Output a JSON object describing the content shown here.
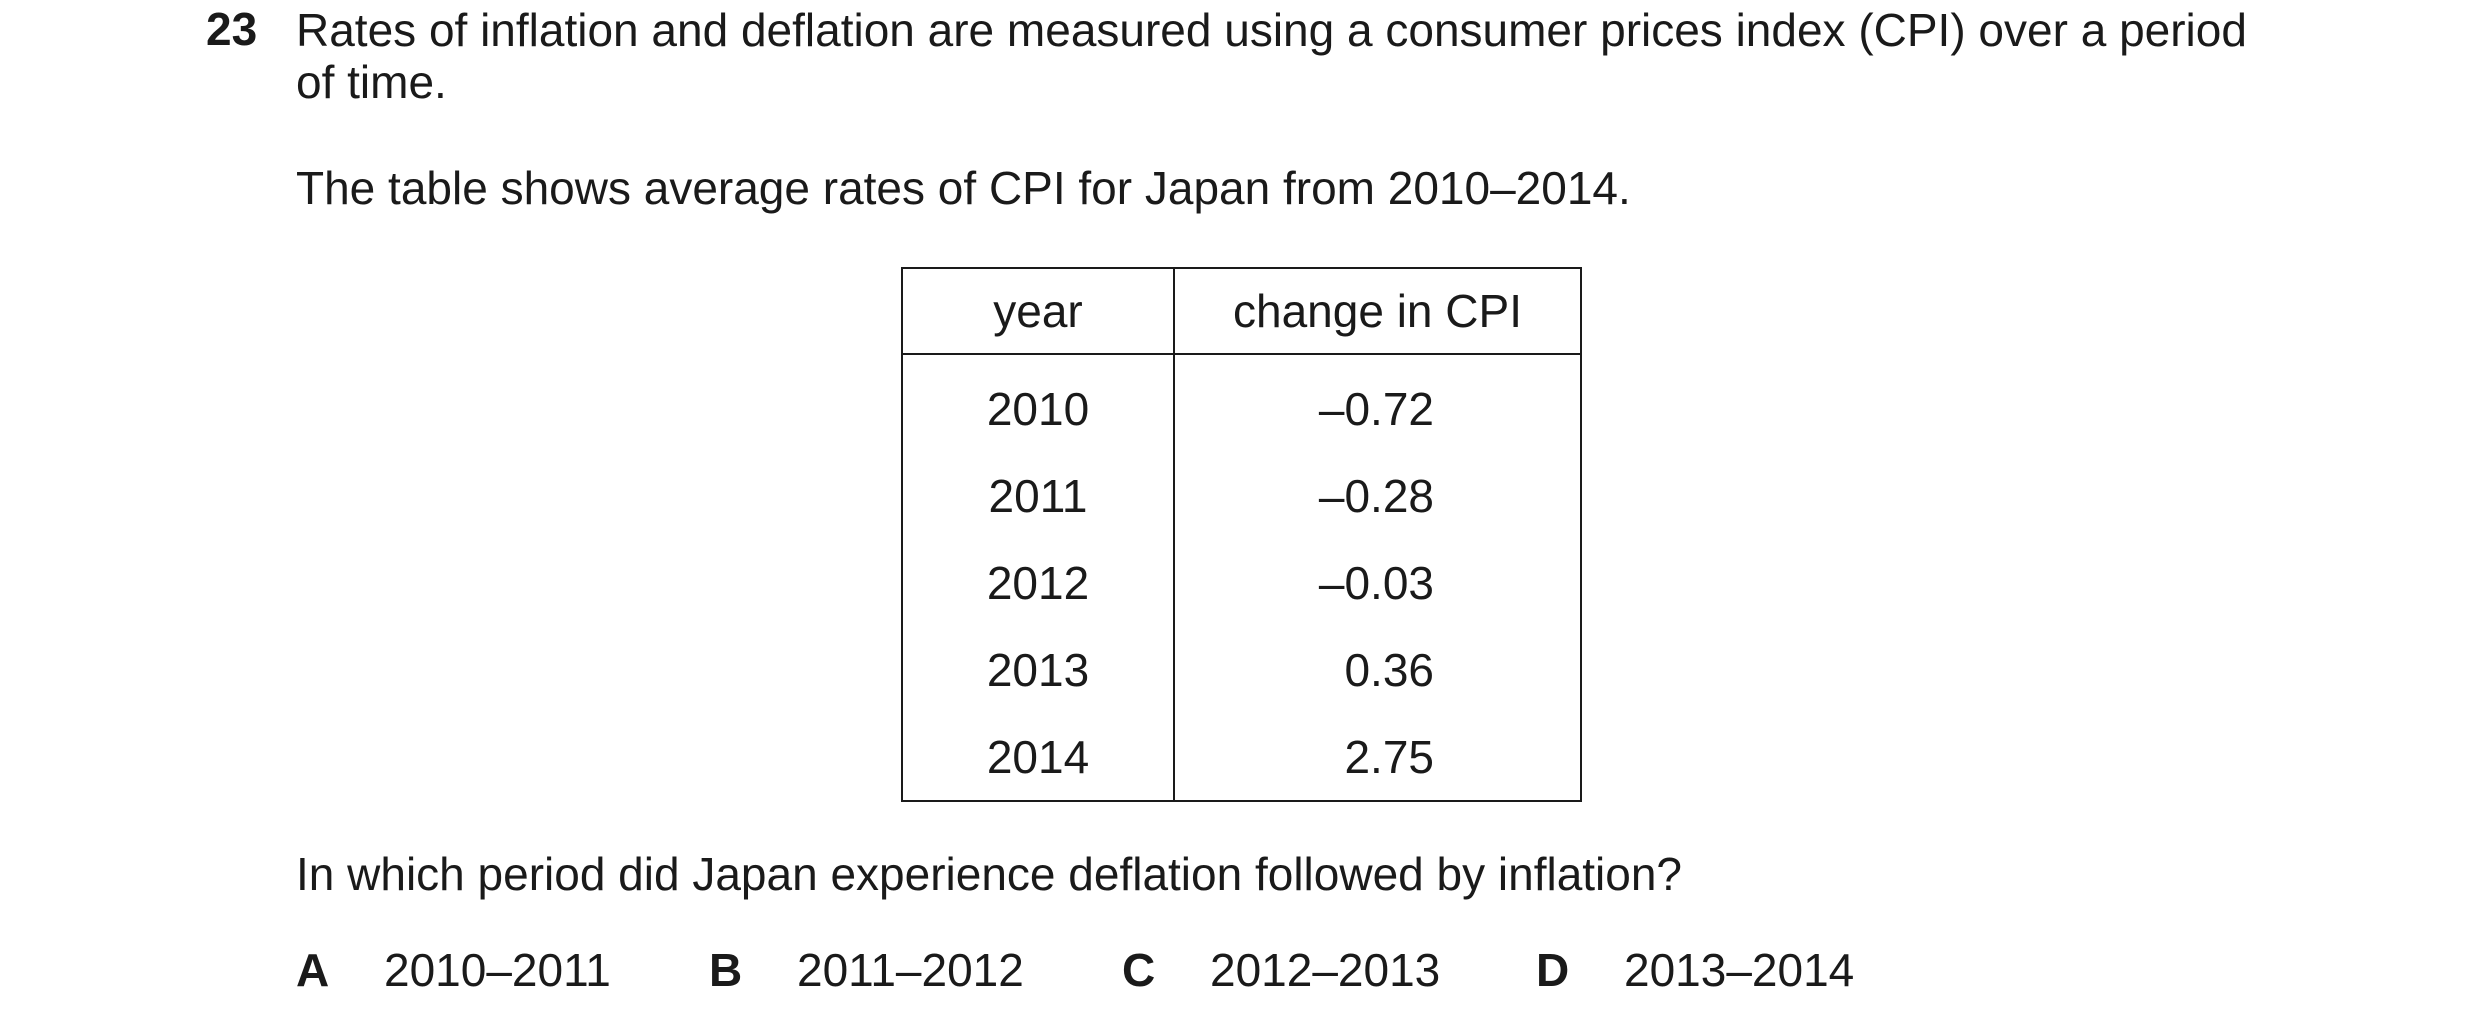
{
  "question_number": "23",
  "stem": {
    "line1": "Rates of inflation and deflation are measured using a consumer prices index (CPI) over a period",
    "line2": "of time."
  },
  "intro": "The table shows average rates of CPI for Japan from 2010–2014.",
  "table": {
    "headers": [
      "year",
      "change in CPI"
    ],
    "rows": [
      {
        "year": "2010",
        "change": "–0.72"
      },
      {
        "year": "2011",
        "change": "–0.28"
      },
      {
        "year": "2012",
        "change": "–0.03"
      },
      {
        "year": "2013",
        "change": "0.36"
      },
      {
        "year": "2014",
        "change": "2.75"
      }
    ]
  },
  "question": "In which period did Japan experience deflation followed by inflation?",
  "options": [
    {
      "letter": "A",
      "text": "2010–2011"
    },
    {
      "letter": "B",
      "text": "2011–2012"
    },
    {
      "letter": "C",
      "text": "2012–2013"
    },
    {
      "letter": "D",
      "text": "2013–2014"
    }
  ]
}
